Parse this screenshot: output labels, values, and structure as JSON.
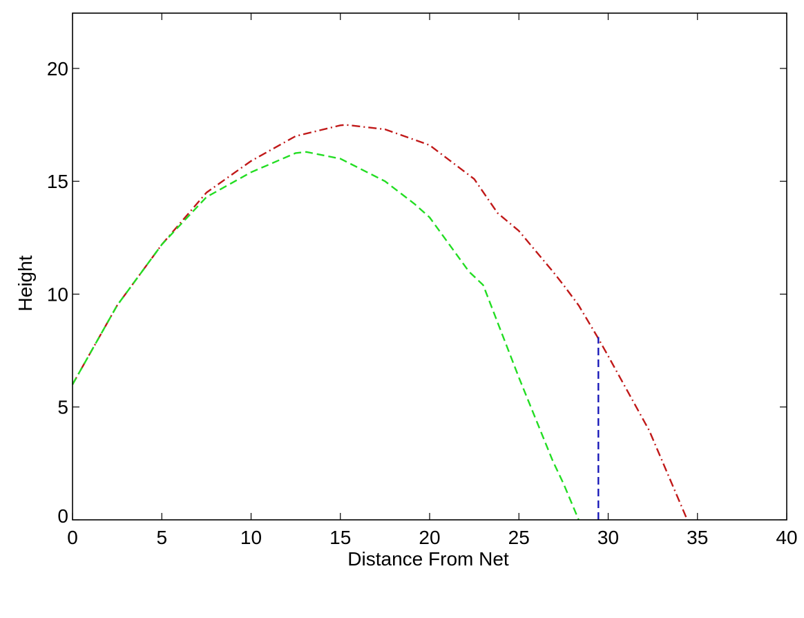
{
  "chart_data": {
    "type": "line",
    "title": "",
    "xlabel": "Distance From Net",
    "ylabel": "Height",
    "xlim": [
      0,
      40
    ],
    "ylim": [
      0,
      22.45
    ],
    "xticks": [
      0,
      5,
      10,
      15,
      20,
      25,
      30,
      35,
      40
    ],
    "xtick_labels": [
      "0",
      "5",
      "10",
      "15",
      "20",
      "25",
      "30",
      "35",
      "40"
    ],
    "yticks": [
      0,
      5,
      10,
      15,
      20
    ],
    "ytick_labels": [
      "0",
      "5",
      "10",
      "15",
      "20"
    ],
    "grid": false,
    "legend": null,
    "series": [
      {
        "name": "trajectory-red-dashdot",
        "color": "#c01818",
        "style": "dash-dot",
        "x": [
          0,
          2.5,
          5,
          7.5,
          10,
          12.5,
          15,
          15.3,
          17.5,
          20,
          21.5,
          22.5,
          23.8,
          25,
          26.9,
          27.5,
          28.35,
          29.4,
          30,
          32.3,
          34.43
        ],
        "y": [
          6.0,
          9.5,
          12.2,
          14.5,
          15.9,
          17.0,
          17.48,
          17.5,
          17.3,
          16.6,
          15.7,
          15.1,
          13.6,
          12.8,
          11.0,
          10.4,
          9.5,
          8.1,
          7.26,
          3.95,
          0.0
        ]
      },
      {
        "name": "trajectory-green-dashed",
        "color": "#22dd22",
        "style": "dashed",
        "x": [
          0,
          2.5,
          5,
          7.5,
          10,
          12.5,
          13.1,
          15,
          17.5,
          19.15,
          20,
          22.2,
          23.0,
          25,
          26.9,
          27.5,
          28.35
        ],
        "y": [
          6.0,
          9.5,
          12.2,
          14.3,
          15.4,
          16.25,
          16.3,
          16.0,
          15.0,
          14.0,
          13.4,
          11.0,
          10.4,
          6.3,
          2.6,
          1.6,
          0.0
        ]
      },
      {
        "name": "net-line-blue-dashed",
        "color": "#1a1ab8",
        "style": "dashed",
        "x": [
          29.45,
          29.45
        ],
        "y": [
          0,
          8.1
        ]
      }
    ]
  },
  "axes": {
    "xlabel": "Distance From Net",
    "ylabel": "Height"
  }
}
